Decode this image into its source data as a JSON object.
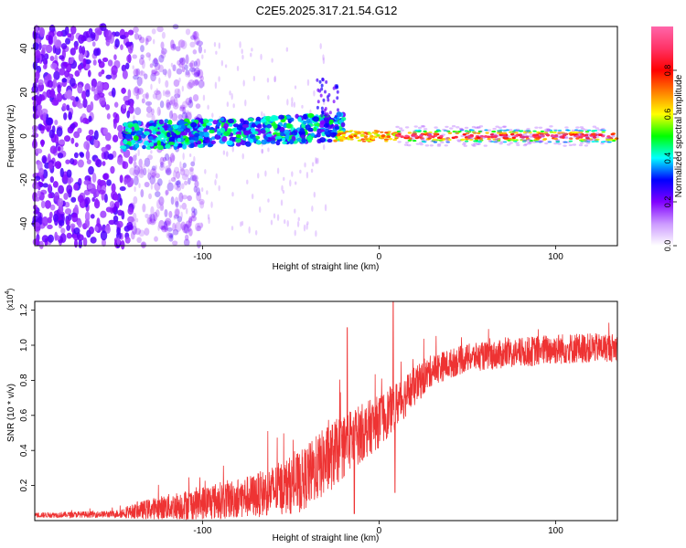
{
  "title": "C2E5.2025.317.21.54.G12",
  "chart_data": [
    {
      "type": "heatmap",
      "name": "spectrogram",
      "xlabel": "Height of straight line (km)",
      "ylabel": "Frequency (Hz)",
      "xlim": [
        -195,
        135
      ],
      "ylim": [
        -50,
        50
      ],
      "xticks": [
        -100,
        0,
        100
      ],
      "yticks": [
        -40,
        -20,
        0,
        20,
        40
      ],
      "ticks_x_labels": [
        "-100",
        "0",
        "100"
      ],
      "ticks_y_labels": [
        "-40",
        "-20",
        "0",
        "20",
        "40"
      ],
      "colorbar": {
        "label": "Normalized spectral amplitude",
        "range": [
          0.0,
          1.0
        ],
        "ticks": [
          0.0,
          0.2,
          0.4,
          0.6,
          0.8
        ],
        "tick_labels": [
          "0.0",
          "0.2",
          "0.4",
          "0.6",
          "0.8"
        ],
        "colormap": [
          "#ffffff",
          "#cc99ff",
          "#8000ff",
          "#0000ff",
          "#00ffff",
          "#00ff00",
          "#ffff00",
          "#ff8000",
          "#ff0000",
          "#ff3366",
          "#ff66aa"
        ]
      },
      "description_regions": [
        {
          "x_from": -195,
          "x_to": -140,
          "freq_spread": 50,
          "amplitude": 0.15
        },
        {
          "x_from": -140,
          "x_to": -25,
          "freq_center": 0,
          "freq_spread": 8,
          "amplitude": 0.35
        },
        {
          "x_from": -25,
          "x_to": 135,
          "freq_center": 0,
          "freq_spread": 2,
          "amplitude": 0.9
        }
      ]
    },
    {
      "type": "line",
      "name": "snr",
      "xlabel": "Height of straight line (km)",
      "ylabel": "SNR (10 * v/v)",
      "multiplier_label": "(x10",
      "multiplier_exp": "4",
      "multiplier_close": ")",
      "xlim": [
        -195,
        135
      ],
      "ylim": [
        0,
        12500
      ],
      "xticks": [
        -100,
        0,
        100
      ],
      "ticks_x_labels": [
        "-100",
        "0",
        "100"
      ],
      "yticks": [
        2000,
        4000,
        6000,
        8000,
        10000,
        12000
      ],
      "ticks_y_labels": [
        "0.2",
        "0.4",
        "0.6",
        "0.8",
        "1.0",
        "1.2"
      ],
      "color": "#ee3333",
      "envelope": [
        {
          "x": -195,
          "base": 300,
          "amp": 300
        },
        {
          "x": -150,
          "base": 350,
          "amp": 400
        },
        {
          "x": -130,
          "base": 600,
          "amp": 1200
        },
        {
          "x": -100,
          "base": 900,
          "amp": 2000
        },
        {
          "x": -70,
          "base": 1300,
          "amp": 2500
        },
        {
          "x": -45,
          "base": 2000,
          "amp": 3500
        },
        {
          "x": -30,
          "base": 3200,
          "amp": 4000
        },
        {
          "x": -15,
          "base": 4500,
          "amp": 3500
        },
        {
          "x": 0,
          "base": 5500,
          "amp": 3000
        },
        {
          "x": 15,
          "base": 7000,
          "amp": 2500
        },
        {
          "x": 30,
          "base": 8500,
          "amp": 1800
        },
        {
          "x": 50,
          "base": 9200,
          "amp": 1600
        },
        {
          "x": 80,
          "base": 9500,
          "amp": 1700
        },
        {
          "x": 100,
          "base": 9700,
          "amp": 1800
        },
        {
          "x": 135,
          "base": 9800,
          "amp": 1600
        }
      ],
      "spikes": [
        {
          "x": -18,
          "y": 11000
        },
        {
          "x": -14,
          "y": 400
        },
        {
          "x": 8,
          "y": 12500
        },
        {
          "x": 9,
          "y": 1600
        }
      ]
    }
  ]
}
